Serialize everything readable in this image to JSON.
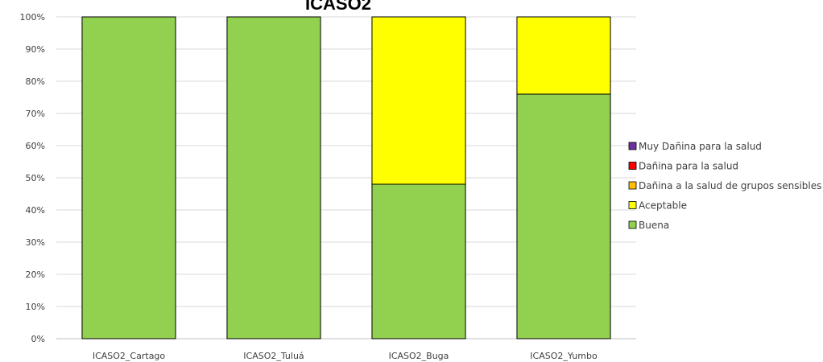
{
  "chart_data": {
    "type": "bar",
    "stacked": true,
    "title": "ICASO2",
    "xlabel": "",
    "ylabel": "",
    "ylim": [
      0,
      100
    ],
    "y_ticks": [
      "0%",
      "10%",
      "20%",
      "30%",
      "40%",
      "50%",
      "60%",
      "70%",
      "80%",
      "90%",
      "100%"
    ],
    "categories": [
      "ICASO2_Cartago",
      "ICASO2_Tuluá",
      "ICASO2_Buga",
      "ICASO2_Yumbo"
    ],
    "series": [
      {
        "name": "Buena",
        "color": "#92d050",
        "values": [
          100,
          100,
          48,
          76
        ]
      },
      {
        "name": "Aceptable",
        "color": "#ffff00",
        "values": [
          0,
          0,
          52,
          24
        ]
      },
      {
        "name": "Dañina a la salud de grupos sensibles",
        "color": "#ffc000",
        "values": [
          0,
          0,
          0,
          0
        ]
      },
      {
        "name": "Dañina para la salud",
        "color": "#ff0000",
        "values": [
          0,
          0,
          0,
          0
        ]
      },
      {
        "name": "Muy Dañina para la salud",
        "color": "#7030a0",
        "values": [
          0,
          0,
          0,
          0
        ]
      }
    ],
    "legend_order": [
      "Muy Dañina para la salud",
      "Dañina para la salud",
      "Dañina a la salud de grupos sensibles",
      "Aceptable",
      "Buena"
    ],
    "legend_position": "right",
    "grid": true
  }
}
